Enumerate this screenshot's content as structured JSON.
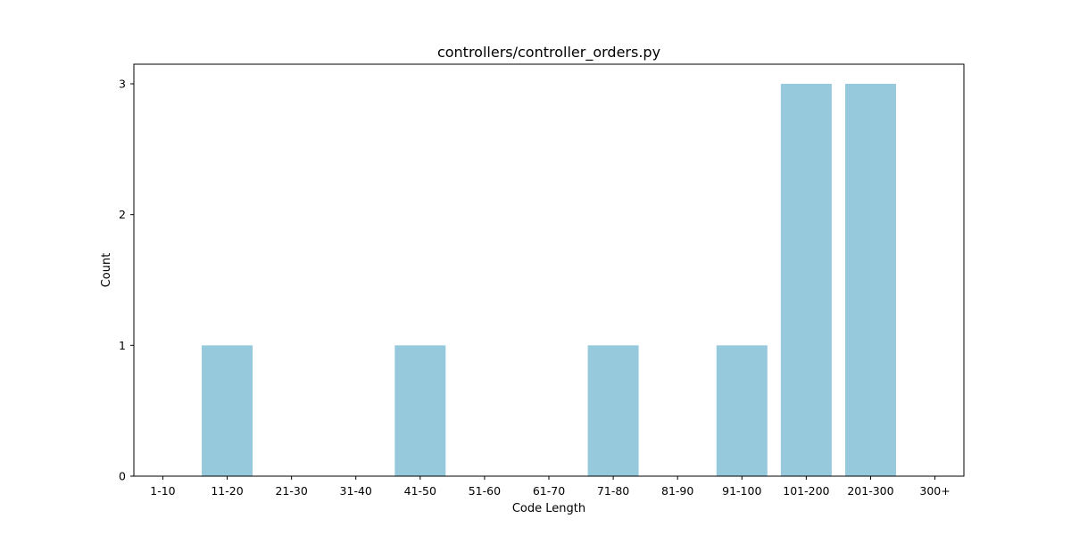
{
  "chart_data": {
    "type": "bar",
    "title": "controllers/controller_orders.py",
    "xlabel": "Code Length",
    "ylabel": "Count",
    "categories": [
      "1-10",
      "11-20",
      "21-30",
      "31-40",
      "41-50",
      "51-60",
      "61-70",
      "71-80",
      "81-90",
      "91-100",
      "101-200",
      "201-300",
      "300+"
    ],
    "values": [
      0,
      1,
      0,
      0,
      1,
      0,
      0,
      1,
      0,
      1,
      3,
      3,
      0
    ],
    "yticks": [
      "0",
      "1",
      "2",
      "3"
    ],
    "ylim": [
      0,
      3.15
    ],
    "bar_color": "#96c9dc",
    "grid": false,
    "legend": "none"
  }
}
